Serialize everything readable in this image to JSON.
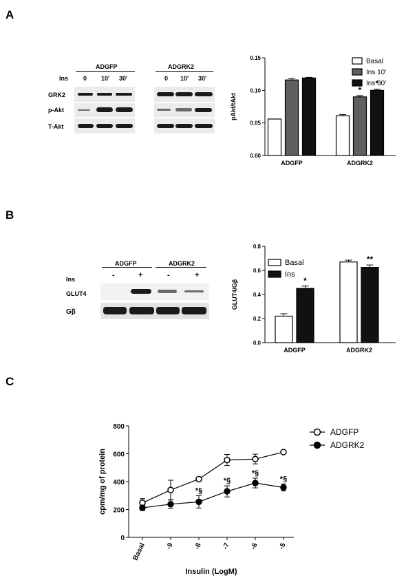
{
  "panelA": {
    "letter": "A",
    "blot": {
      "group_labels": [
        "ADGFP",
        "ADGRK2"
      ],
      "ins_label": "Ins",
      "time_labels": [
        "0",
        "10'",
        "30'"
      ],
      "row_labels": [
        "GRK2",
        "p-Akt",
        "T-Akt"
      ]
    },
    "chart_data": {
      "type": "bar",
      "categories": [
        "ADGFP",
        "ADGRK2"
      ],
      "series": [
        {
          "name": "Basal",
          "values": [
            0.056,
            0.061
          ],
          "errors": [
            0,
            0.002
          ],
          "color": "#ffffff"
        },
        {
          "name": "Ins 10'",
          "values": [
            0.116,
            0.09
          ],
          "errors": [
            0.002,
            0.002
          ],
          "color": "#5f5f5f"
        },
        {
          "name": "Ins 30'",
          "values": [
            0.119,
            0.1
          ],
          "errors": [
            0.001,
            0.002
          ],
          "color": "#111111"
        }
      ],
      "annotations": [
        {
          "category": "ADGRK2",
          "series": "Ins 10'",
          "text": "*"
        },
        {
          "category": "ADGRK2",
          "series": "Ins 30'",
          "text": "*"
        }
      ],
      "ylabel": "pAkt/tAkt",
      "ylim": [
        0,
        0.15
      ],
      "yticks": [
        "0.00",
        "0.05",
        "0.10",
        "0.15"
      ],
      "legend": "top-right"
    }
  },
  "panelB": {
    "letter": "B",
    "blot": {
      "group_labels": [
        "ADGFP",
        "ADGRK2"
      ],
      "ins_label": "Ins",
      "signs": [
        "-",
        "+",
        "-",
        "+"
      ],
      "row_labels": [
        "GLUT4",
        "Gβ"
      ]
    },
    "chart_data": {
      "type": "bar",
      "categories": [
        "ADGFP",
        "ADGRK2"
      ],
      "series": [
        {
          "name": "Basal",
          "values": [
            0.22,
            0.67
          ],
          "errors": [
            0.02,
            0.015
          ],
          "color": "#ffffff"
        },
        {
          "name": "Ins",
          "values": [
            0.45,
            0.625
          ],
          "errors": [
            0.02,
            0.02
          ],
          "color": "#111111"
        }
      ],
      "annotations": [
        {
          "category": "ADGFP",
          "series": "Ins",
          "text": "*"
        },
        {
          "category": "ADGRK2",
          "series": "Ins",
          "text": "**"
        }
      ],
      "ylabel": "GLUT4/Gβ",
      "ylim": [
        0,
        0.8
      ],
      "yticks": [
        "0.0",
        "0.2",
        "0.4",
        "0.6",
        "0.8"
      ],
      "legend": "top-left"
    }
  },
  "panelC": {
    "letter": "C",
    "chart_data": {
      "type": "line",
      "categories": [
        "Basal",
        "-9",
        "-8",
        "-7",
        "-6",
        "-5"
      ],
      "series": [
        {
          "name": "ADGFP",
          "marker": "open-circle",
          "values": [
            248,
            340,
            418,
            555,
            562,
            612
          ],
          "errors": [
            30,
            70,
            10,
            40,
            35,
            10
          ]
        },
        {
          "name": "ADGRK2",
          "marker": "filled-circle",
          "values": [
            212,
            238,
            255,
            330,
            390,
            358
          ],
          "errors": [
            20,
            30,
            45,
            40,
            35,
            25
          ]
        }
      ],
      "annotations": [
        {
          "category": "-8",
          "text": "*§"
        },
        {
          "category": "-7",
          "text": "*§"
        },
        {
          "category": "-6",
          "text": "*§"
        },
        {
          "category": "-5",
          "text": "*§"
        }
      ],
      "xlabel": "Insulin (LogM)",
      "ylabel": "cpm/mg of protein",
      "ylim": [
        0,
        800
      ],
      "yticks": [
        "0",
        "200",
        "400",
        "600",
        "800"
      ],
      "legend": "top-right"
    }
  }
}
